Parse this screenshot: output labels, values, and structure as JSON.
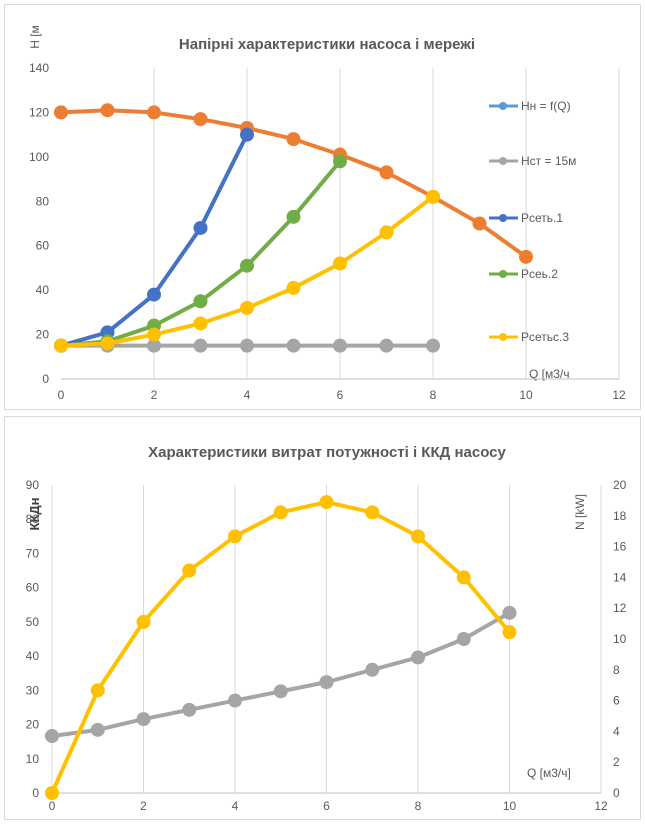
{
  "chart_data": [
    {
      "type": "line",
      "title": "Напірні характеристики насоса і мережі",
      "xlabel": "Q [м3/ч",
      "ylabel": "Н [м",
      "xlim": [
        0,
        12
      ],
      "ylim": [
        0,
        140
      ],
      "xticks": [
        "0",
        "2",
        "4",
        "6",
        "8",
        "10",
        "12"
      ],
      "yticks": [
        "0",
        "20",
        "40",
        "60",
        "80",
        "100",
        "120",
        "140"
      ],
      "grid": "vertical",
      "legend_position": "right",
      "series": [
        {
          "name": "Нн = f(Q)",
          "color": "#ed7d31",
          "legend_color": "#5b9bd5",
          "x": [
            0,
            1,
            2,
            3,
            4,
            5,
            6,
            7,
            8,
            9,
            10
          ],
          "y": [
            120,
            121,
            120,
            117,
            113,
            108,
            101,
            93,
            82,
            70,
            55
          ]
        },
        {
          "name": "Нст = 15м",
          "color": "#a5a5a5",
          "x": [
            0,
            1,
            2,
            3,
            4,
            5,
            6,
            7,
            8
          ],
          "y": [
            15,
            15,
            15,
            15,
            15,
            15,
            15,
            15,
            15
          ]
        },
        {
          "name": "Рсеть.1",
          "color": "#4472c4",
          "x": [
            0,
            1,
            2,
            3,
            4
          ],
          "y": [
            15,
            21,
            38,
            68,
            110
          ]
        },
        {
          "name": "Рсеь.2",
          "color": "#70ad47",
          "x": [
            0,
            1,
            2,
            3,
            4,
            5,
            6
          ],
          "y": [
            15,
            17,
            24,
            35,
            51,
            73,
            98
          ]
        },
        {
          "name": "Рсетьс.3",
          "color": "#ffc000",
          "x": [
            0,
            1,
            2,
            3,
            4,
            5,
            6,
            7,
            8
          ],
          "y": [
            15,
            16,
            20,
            25,
            32,
            41,
            52,
            66,
            82
          ]
        }
      ]
    },
    {
      "type": "line",
      "title": "Характеристики витрат потужності і ККД насосу",
      "xlabel": "Q [м3/ч]",
      "ylabel": "ККДн",
      "y2label": "N [kW]",
      "xlim": [
        0,
        12
      ],
      "ylim": [
        0,
        90
      ],
      "y2lim": [
        0,
        20
      ],
      "xticks": [
        "0",
        "2",
        "4",
        "6",
        "8",
        "10",
        "12"
      ],
      "yticks": [
        "0",
        "10",
        "20",
        "30",
        "40",
        "50",
        "60",
        "70",
        "80",
        "90"
      ],
      "y2ticks": [
        "0",
        "2",
        "4",
        "6",
        "8",
        "10",
        "12",
        "14",
        "16",
        "18",
        "20"
      ],
      "grid": "vertical",
      "series": [
        {
          "axis": "left",
          "color": "#ffc000",
          "x": [
            0,
            1,
            2,
            3,
            4,
            5,
            6,
            7,
            8,
            9,
            10
          ],
          "y": [
            0,
            30,
            50,
            65,
            75,
            82,
            85,
            82,
            75,
            63,
            47
          ]
        },
        {
          "axis": "right",
          "color": "#a5a5a5",
          "x": [
            0,
            1,
            2,
            3,
            4,
            5,
            6,
            7,
            8,
            9,
            10
          ],
          "y": [
            3.7,
            4.1,
            4.8,
            5.4,
            6.0,
            6.6,
            7.2,
            8.0,
            8.8,
            10.0,
            11.7
          ]
        }
      ]
    }
  ]
}
